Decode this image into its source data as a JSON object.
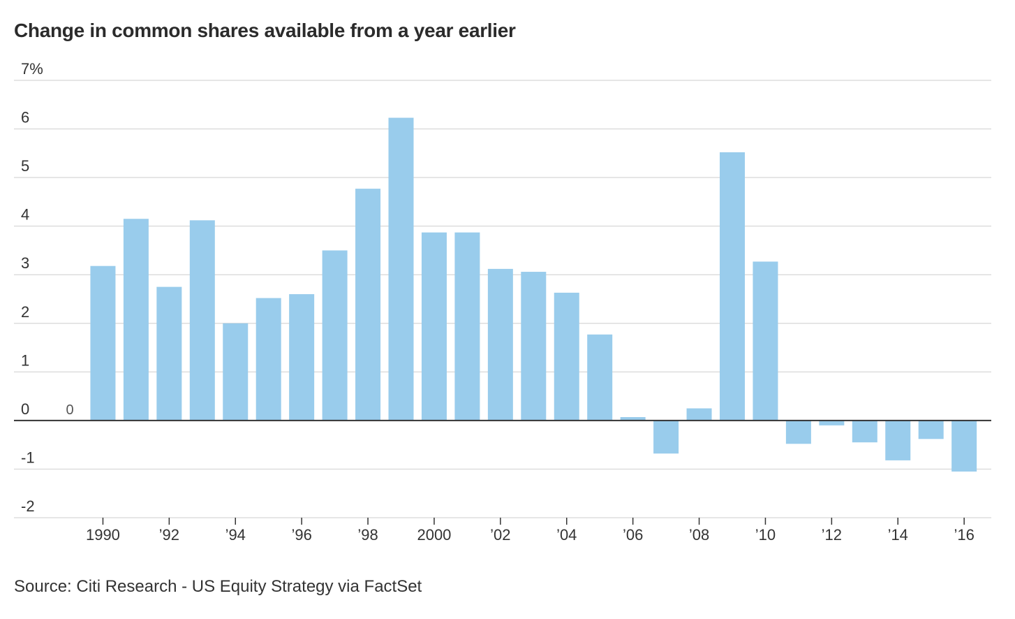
{
  "chart_data": {
    "type": "bar",
    "title": "Change in common shares available from a year earlier",
    "source": "Source: Citi Research - US Equity Strategy via FactSet",
    "xlabel": "",
    "ylabel": "",
    "ylim": [
      -2,
      7
    ],
    "y_ticks": [
      {
        "value": 7,
        "label": "7%"
      },
      {
        "value": 6,
        "label": "6"
      },
      {
        "value": 5,
        "label": "5"
      },
      {
        "value": 4,
        "label": "4"
      },
      {
        "value": 3,
        "label": "3"
      },
      {
        "value": 2,
        "label": "2"
      },
      {
        "value": 1,
        "label": "1"
      },
      {
        "value": 0,
        "label": "0"
      },
      {
        "value": -1,
        "label": "-1"
      },
      {
        "value": -2,
        "label": "-2"
      }
    ],
    "categories": [
      1989,
      1990,
      1991,
      1992,
      1993,
      1994,
      1995,
      1996,
      1997,
      1998,
      1999,
      2000,
      2001,
      2002,
      2003,
      2004,
      2005,
      2006,
      2007,
      2008,
      2009,
      2010,
      2011,
      2012,
      2013,
      2014,
      2015,
      2016
    ],
    "values": [
      0,
      3.18,
      4.15,
      2.75,
      4.12,
      2.0,
      2.52,
      2.6,
      3.5,
      4.77,
      6.23,
      3.87,
      3.87,
      3.12,
      3.06,
      2.63,
      1.77,
      0.07,
      -0.68,
      0.25,
      5.52,
      3.27,
      -0.48,
      -0.1,
      -0.45,
      -0.82,
      -0.38,
      -1.05
    ],
    "x_ticks": [
      {
        "year": 1990,
        "label": "1990"
      },
      {
        "year": 1992,
        "label": "’92"
      },
      {
        "year": 1994,
        "label": "’94"
      },
      {
        "year": 1996,
        "label": "’96"
      },
      {
        "year": 1998,
        "label": "’98"
      },
      {
        "year": 2000,
        "label": "2000"
      },
      {
        "year": 2002,
        "label": "’02"
      },
      {
        "year": 2004,
        "label": "’04"
      },
      {
        "year": 2006,
        "label": "’06"
      },
      {
        "year": 2008,
        "label": "’08"
      },
      {
        "year": 2010,
        "label": "’10"
      },
      {
        "year": 2012,
        "label": "’12"
      },
      {
        "year": 2014,
        "label": "’14"
      },
      {
        "year": 2016,
        "label": "’16"
      }
    ],
    "annotations": [
      {
        "year": 1989,
        "text": "0"
      }
    ],
    "bar_color": "#99ccec",
    "grid": true
  }
}
